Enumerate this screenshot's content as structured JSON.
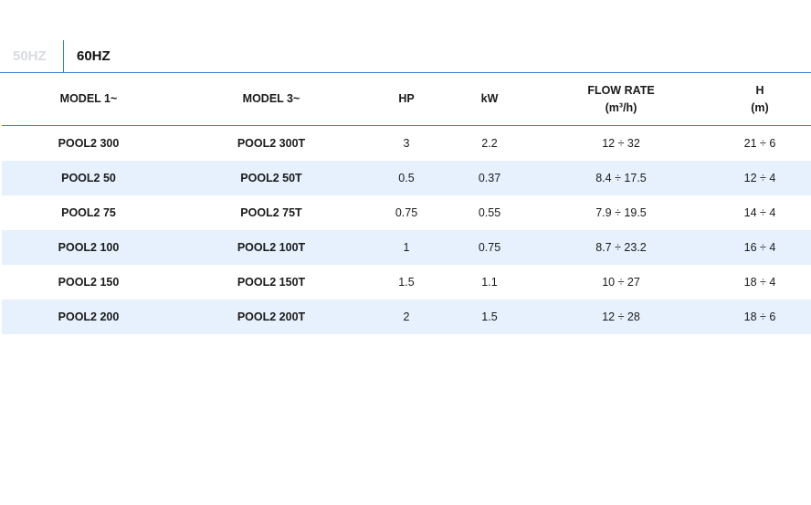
{
  "tabs": [
    {
      "label": "50HZ",
      "active": false
    },
    {
      "label": "60HZ",
      "active": true
    }
  ],
  "colors": {
    "accent": "#1f86f0",
    "row_alt": "#e6f1fd",
    "inactive_tab": "#d8dbe0"
  },
  "table": {
    "headers": [
      {
        "line1": "MODEL 1~",
        "line2": ""
      },
      {
        "line1": "MODEL 3~",
        "line2": ""
      },
      {
        "line1": "HP",
        "line2": ""
      },
      {
        "line1": "kW",
        "line2": ""
      },
      {
        "line1": "FLOW RATE",
        "line2": "(m³/h)"
      },
      {
        "line1": "H",
        "line2": "(m)"
      }
    ],
    "rows": [
      [
        "POOL2 300",
        "POOL2 300T",
        "3",
        "2.2",
        "12 ÷ 32",
        "21 ÷ 6"
      ],
      [
        "POOL2 50",
        "POOL2 50T",
        "0.5",
        "0.37",
        "8.4 ÷ 17.5",
        "12 ÷ 4"
      ],
      [
        "POOL2 75",
        "POOL2 75T",
        "0.75",
        "0.55",
        "7.9 ÷ 19.5",
        "14 ÷ 4"
      ],
      [
        "POOL2 100",
        "POOL2 100T",
        "1",
        "0.75",
        "8.7 ÷ 23.2",
        "16 ÷ 4"
      ],
      [
        "POOL2 150",
        "POOL2 150T",
        "1.5",
        "1.1",
        "10 ÷ 27",
        "18 ÷ 4"
      ],
      [
        "POOL2 200",
        "POOL2 200T",
        "2",
        "1.5",
        "12 ÷ 28",
        "18 ÷ 6"
      ]
    ]
  }
}
